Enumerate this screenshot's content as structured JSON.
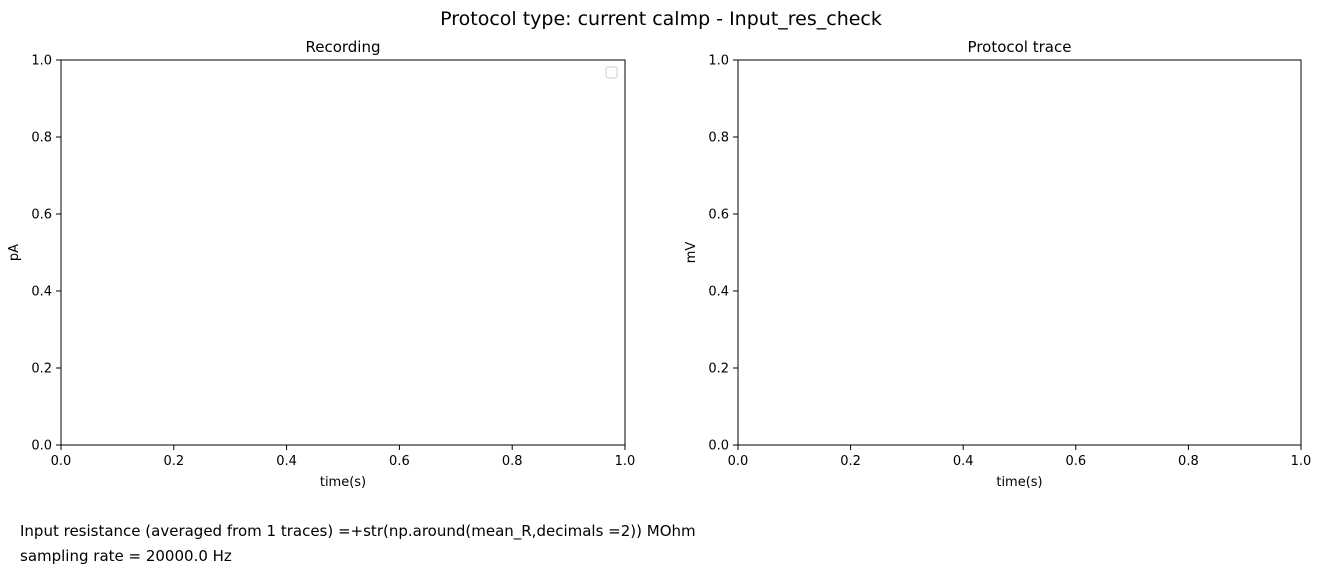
{
  "figure": {
    "suptitle": "Protocol type: current calmp - Input_res_check",
    "footer": [
      "Input resistance (averaged from 1 traces) =+str(np.around(mean_R,decimals =2)) MOhm",
      "sampling rate = 20000.0 Hz"
    ]
  },
  "chart_data": [
    {
      "type": "line",
      "title": "Recording",
      "xlabel": "time(s)",
      "ylabel": "pA",
      "xlim": [
        0.0,
        1.0
      ],
      "ylim": [
        0.0,
        1.0
      ],
      "xticks": [
        "0.0",
        "0.2",
        "0.4",
        "0.6",
        "0.8",
        "1.0"
      ],
      "yticks": [
        "0.0",
        "0.2",
        "0.4",
        "0.6",
        "0.8",
        "1.0"
      ],
      "series": [],
      "legend": "top-right",
      "grid": false
    },
    {
      "type": "line",
      "title": "Protocol trace",
      "xlabel": "time(s)",
      "ylabel": "mV",
      "xlim": [
        0.0,
        1.0
      ],
      "ylim": [
        0.0,
        1.0
      ],
      "xticks": [
        "0.0",
        "0.2",
        "0.4",
        "0.6",
        "0.8",
        "1.0"
      ],
      "yticks": [
        "0.0",
        "0.2",
        "0.4",
        "0.6",
        "0.8",
        "1.0"
      ],
      "series": [],
      "grid": false
    }
  ]
}
